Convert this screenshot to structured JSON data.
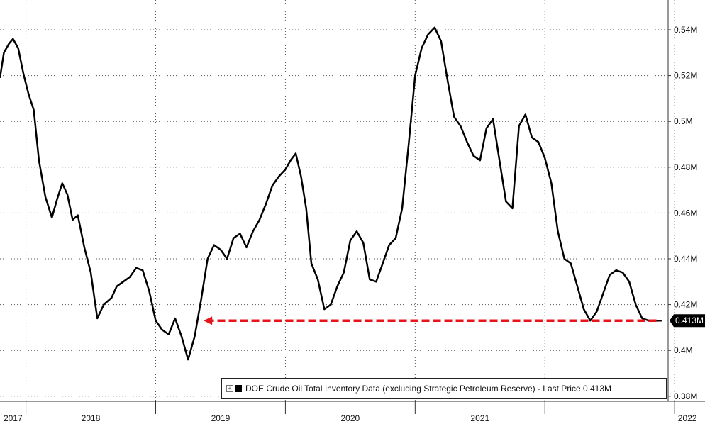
{
  "chart_data": {
    "type": "line",
    "title": "",
    "xlabel": "",
    "ylabel": "",
    "x_ticks": [
      "2017",
      "2018",
      "2019",
      "2020",
      "2021",
      "2022"
    ],
    "y_ticks": [
      "0.38M",
      "0.4M",
      "0.42M",
      "0.44M",
      "0.46M",
      "0.48M",
      "0.5M",
      "0.52M",
      "0.54M"
    ],
    "ylim": [
      0.38,
      0.548
    ],
    "xlim": [
      2016.9,
      2022.05
    ],
    "grid": true,
    "legend_position": "bottom",
    "series": [
      {
        "name": "DOE Crude Oil Total Inventory Data (excluding Strategic Petroleum Reserve)",
        "color": "#000000",
        "x": [
          2016.9,
          2016.93,
          2016.97,
          2017.0,
          2017.04,
          2017.08,
          2017.12,
          2017.16,
          2017.2,
          2017.25,
          2017.3,
          2017.34,
          2017.38,
          2017.42,
          2017.46,
          2017.5,
          2017.55,
          2017.6,
          2017.65,
          2017.7,
          2017.76,
          2017.8,
          2017.85,
          2017.9,
          2017.95,
          2018.0,
          2018.05,
          2018.1,
          2018.15,
          2018.2,
          2018.25,
          2018.3,
          2018.35,
          2018.4,
          2018.45,
          2018.5,
          2018.55,
          2018.6,
          2018.65,
          2018.7,
          2018.75,
          2018.8,
          2018.85,
          2018.9,
          2018.95,
          2019.0,
          2019.05,
          2019.1,
          2019.14,
          2019.18,
          2019.22,
          2019.26,
          2019.3,
          2019.35,
          2019.4,
          2019.45,
          2019.5,
          2019.55,
          2019.6,
          2019.65,
          2019.7,
          2019.75,
          2019.8,
          2019.85,
          2019.9,
          2019.95,
          2020.0,
          2020.05,
          2020.1,
          2020.15,
          2020.2,
          2020.25,
          2020.3,
          2020.35,
          2020.4,
          2020.45,
          2020.5,
          2020.55,
          2020.6,
          2020.65,
          2020.7,
          2020.75,
          2020.8,
          2020.85,
          2020.9,
          2020.95,
          2021.0,
          2021.05,
          2021.1,
          2021.15,
          2021.2,
          2021.25,
          2021.3,
          2021.35,
          2021.4,
          2021.45,
          2021.5,
          2021.55,
          2021.6,
          2021.65,
          2021.7,
          2021.75,
          2021.8,
          2021.85,
          2021.9,
          2021.95,
          2022.0
        ],
        "values": [
          0.519,
          0.53,
          0.534,
          0.536,
          0.532,
          0.521,
          0.512,
          0.505,
          0.483,
          0.467,
          0.458,
          0.466,
          0.473,
          0.468,
          0.457,
          0.459,
          0.445,
          0.434,
          0.414,
          0.42,
          0.423,
          0.428,
          0.43,
          0.432,
          0.436,
          0.435,
          0.426,
          0.413,
          0.409,
          0.407,
          0.414,
          0.406,
          0.396,
          0.406,
          0.422,
          0.44,
          0.446,
          0.444,
          0.44,
          0.449,
          0.451,
          0.445,
          0.452,
          0.457,
          0.464,
          0.472,
          0.476,
          0.479,
          0.483,
          0.486,
          0.476,
          0.462,
          0.438,
          0.431,
          0.418,
          0.42,
          0.428,
          0.434,
          0.448,
          0.452,
          0.447,
          0.431,
          0.43,
          0.438,
          0.446,
          0.449,
          0.462,
          0.49,
          0.52,
          0.532,
          0.538,
          0.541,
          0.535,
          0.518,
          0.502,
          0.498,
          0.491,
          0.485,
          0.483,
          0.497,
          0.501,
          0.483,
          0.465,
          0.462,
          0.498,
          0.503,
          0.493,
          0.491,
          0.484,
          0.473,
          0.452,
          0.44,
          0.438,
          0.428,
          0.418,
          0.413,
          0.417,
          0.425,
          0.433,
          0.435,
          0.434,
          0.43,
          0.42,
          0.414,
          0.413,
          0.413,
          0.413
        ]
      }
    ],
    "last_price_label": "0.413M",
    "reference_arrow": {
      "from_x": 2021.96,
      "to_x": 2018.47,
      "y": 0.413,
      "color": "#e8141b"
    }
  },
  "legend": {
    "expand_glyph": "⊞",
    "text": "DOE Crude Oil Total Inventory Data (excluding Strategic Petroleum Reserve) - Last Price 0.413M"
  }
}
